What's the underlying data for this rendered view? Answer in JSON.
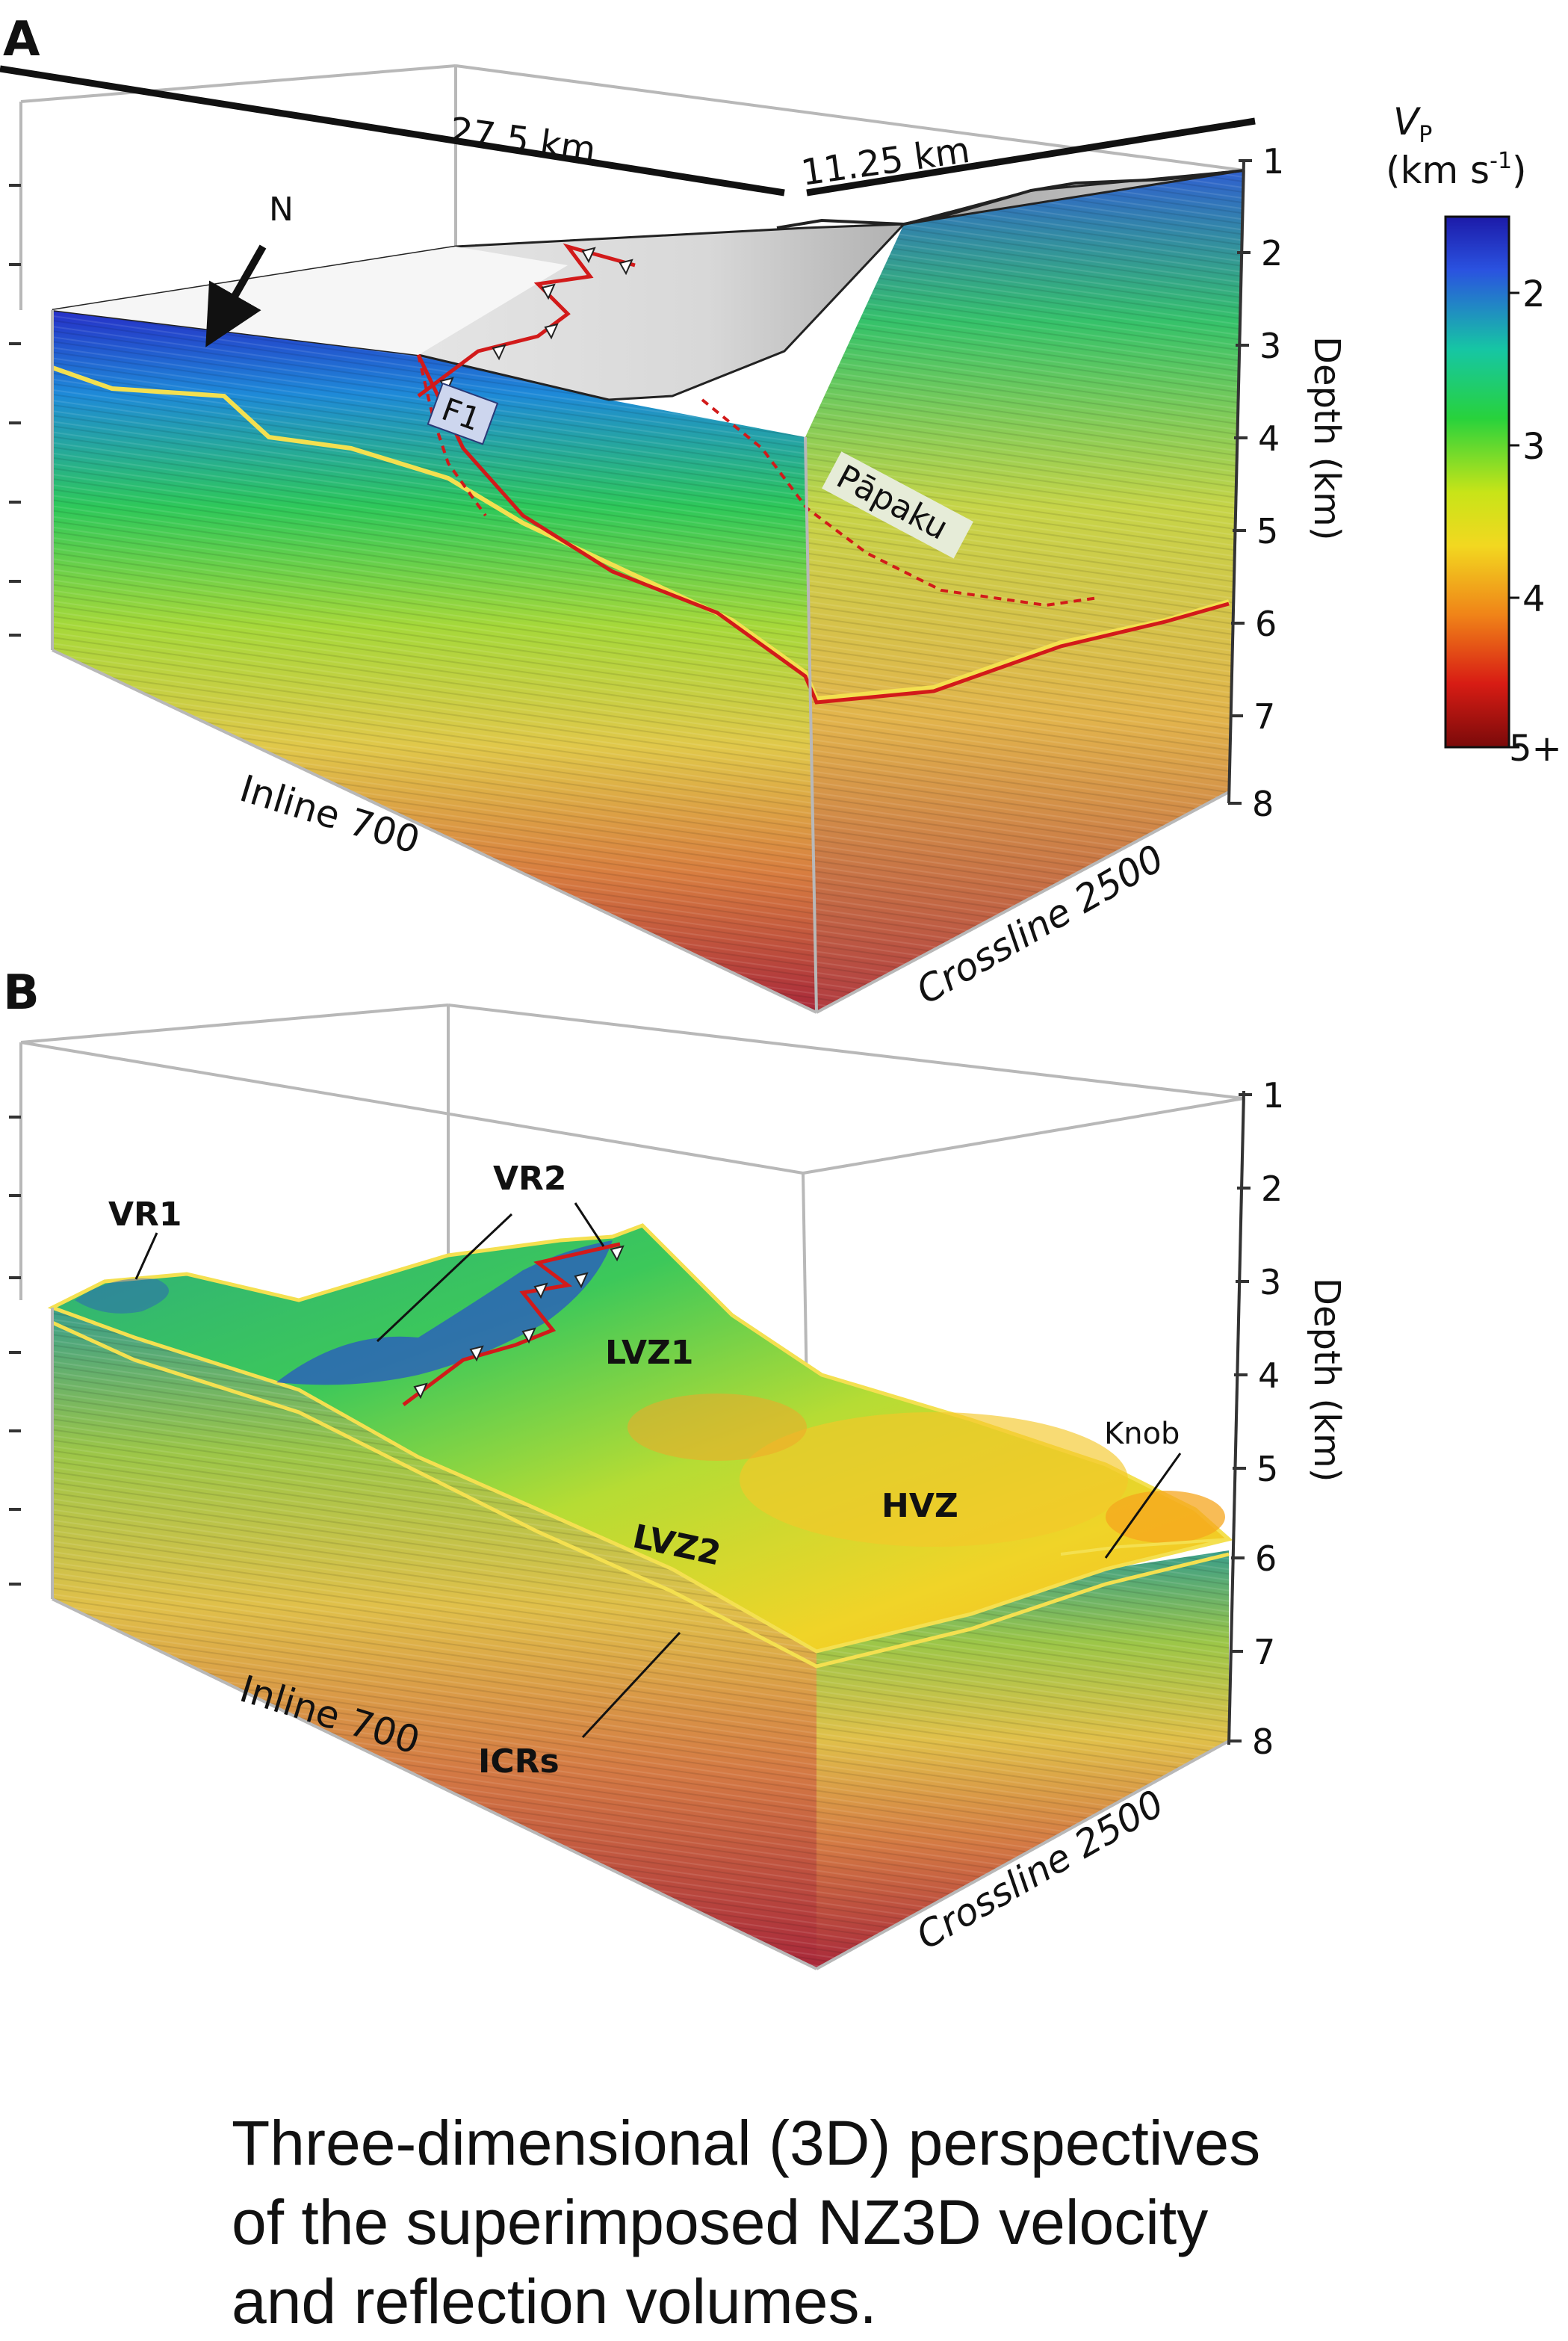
{
  "panel_a": {
    "letter": "A",
    "dim_inline": "27.5 km",
    "dim_crossline": "11.25 km",
    "north_label": "N",
    "fault_label": "F1",
    "feature_label": "Pāpaku",
    "inline_label": "Inline 700",
    "crossline_label": "Crossline 2500",
    "depth_axis_title": "Depth (km)",
    "depth_ticks": [
      "1",
      "2",
      "3",
      "4",
      "5",
      "6",
      "7",
      "8"
    ]
  },
  "panel_b": {
    "letter": "B",
    "labels": {
      "vr1": "VR1",
      "vr2": "VR2",
      "lvz1": "LVZ1",
      "lvz2": "LVZ2",
      "hvz": "HVZ",
      "knob": "Knob",
      "icrs": "ICRs"
    },
    "inline_label": "Inline 700",
    "crossline_label": "Crossline 2500",
    "depth_axis_title": "Depth (km)",
    "depth_ticks": [
      "1",
      "2",
      "3",
      "4",
      "5",
      "6",
      "7",
      "8"
    ]
  },
  "colorbar": {
    "symbol": "V",
    "subscript": "P",
    "unit_prefix": "(km s",
    "unit_exp": "-1",
    "unit_suffix": ")",
    "ticks": [
      "2",
      "3",
      "4",
      "5+"
    ],
    "colors": [
      "#1c1aa8",
      "#2a52e0",
      "#16c6a4",
      "#28d23c",
      "#c8e418",
      "#f2d820",
      "#f08418",
      "#d81c14",
      "#7a0a0a"
    ]
  },
  "caption_lines": [
    "Three-dimensional (3D) perspectives",
    "of the superimposed NZ3D velocity",
    "and reflection volumes."
  ]
}
